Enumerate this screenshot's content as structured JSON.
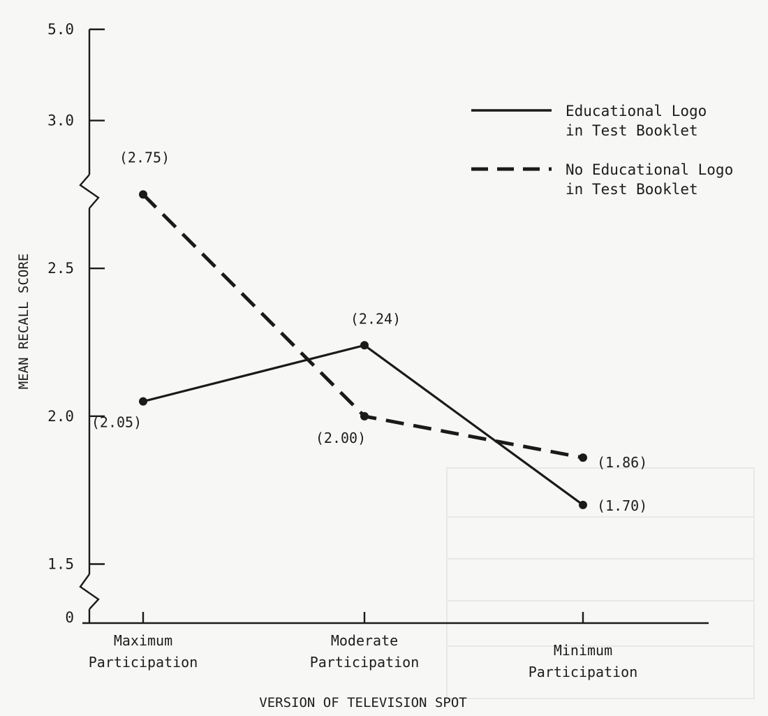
{
  "chart_data": {
    "type": "line",
    "title": "",
    "xlabel": "VERSION OF TELEVISION SPOT",
    "ylabel": "MEAN RECALL SCORE",
    "categories": [
      [
        "Maximum",
        "Participation"
      ],
      [
        "Moderate",
        "Participation"
      ],
      [
        "Minimum",
        "Participation"
      ]
    ],
    "y_ticks": [
      "0",
      "1.5",
      "2.0",
      "2.5",
      "3.0",
      "5.0"
    ],
    "y_axis_broken": true,
    "ylim_visible": [
      1.5,
      3.0
    ],
    "series": [
      {
        "name": [
          "Educational Logo",
          "in Test Booklet"
        ],
        "style": "solid",
        "values": [
          2.05,
          2.24,
          1.7
        ],
        "labels": [
          "(2.05)",
          "(2.24)",
          "(1.70)"
        ]
      },
      {
        "name": [
          "No Educational Logo",
          "in Test Booklet"
        ],
        "style": "dashed",
        "values": [
          2.75,
          2.0,
          1.86
        ],
        "labels": [
          "(2.75)",
          "(2.00)",
          "(1.86)"
        ]
      }
    ],
    "legend_position": "top-right",
    "grid": false,
    "line_color": "#1a1a1a"
  }
}
